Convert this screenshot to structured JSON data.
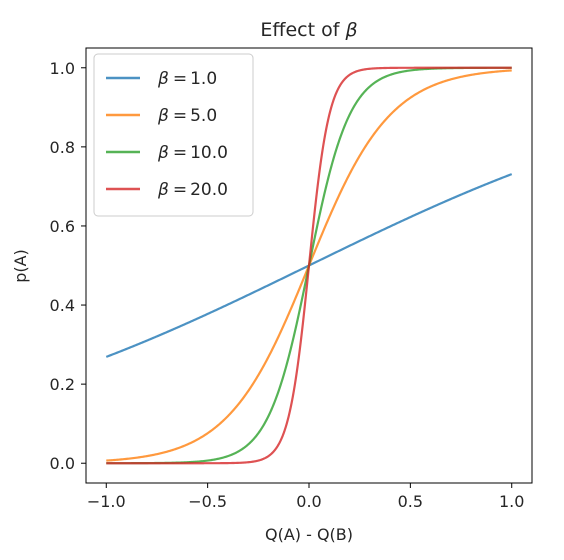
{
  "chart_data": {
    "type": "line",
    "title_prefix": "Effect of ",
    "title_symbol": "β",
    "xlabel": "Q(A) - Q(B)",
    "ylabel": "p(A)",
    "xlim": [
      -1.1,
      1.1
    ],
    "ylim": [
      -0.05,
      1.05
    ],
    "x_ticks": [
      -1.0,
      -0.5,
      0.0,
      0.5,
      1.0
    ],
    "x_tick_labels": [
      "−1.0",
      "−0.5",
      "0.0",
      "0.5",
      "1.0"
    ],
    "y_ticks": [
      0.0,
      0.2,
      0.4,
      0.6,
      0.8,
      1.0
    ],
    "y_tick_labels": [
      "0.0",
      "0.2",
      "0.4",
      "0.6",
      "0.8",
      "1.0"
    ],
    "grid": false,
    "legend_position": "top-left",
    "function": "logistic",
    "x": [
      -1.0,
      -0.9,
      -0.8,
      -0.7,
      -0.6,
      -0.5,
      -0.4,
      -0.3,
      -0.2,
      -0.1,
      0.0,
      0.1,
      0.2,
      0.3,
      0.4,
      0.5,
      0.6,
      0.7,
      0.8,
      0.9,
      1.0
    ],
    "series": [
      {
        "name": "1.0",
        "beta": 1.0,
        "color": "#1f77b4",
        "values": [
          0.269,
          0.289,
          0.31,
          0.332,
          0.354,
          0.378,
          0.401,
          0.426,
          0.45,
          0.475,
          0.5,
          0.525,
          0.55,
          0.574,
          0.599,
          0.622,
          0.646,
          0.668,
          0.69,
          0.711,
          0.731
        ]
      },
      {
        "name": "5.0",
        "beta": 5.0,
        "color": "#ff7f0e",
        "values": [
          0.007,
          0.011,
          0.018,
          0.029,
          0.047,
          0.076,
          0.119,
          0.182,
          0.269,
          0.378,
          0.5,
          0.622,
          0.731,
          0.818,
          0.881,
          0.924,
          0.953,
          0.971,
          0.982,
          0.989,
          0.993
        ]
      },
      {
        "name": "10.0",
        "beta": 10.0,
        "color": "#2ca02c",
        "values": [
          0.0,
          0.0,
          0.0,
          0.001,
          0.002,
          0.007,
          0.018,
          0.047,
          0.119,
          0.269,
          0.5,
          0.731,
          0.881,
          0.953,
          0.982,
          0.993,
          0.998,
          0.999,
          1.0,
          1.0,
          1.0
        ]
      },
      {
        "name": "20.0",
        "beta": 20.0,
        "color": "#d62728",
        "values": [
          0.0,
          0.0,
          0.0,
          0.0,
          0.0,
          0.0,
          0.0,
          0.002,
          0.018,
          0.119,
          0.5,
          0.881,
          0.982,
          0.998,
          1.0,
          1.0,
          1.0,
          1.0,
          1.0,
          1.0,
          1.0
        ]
      }
    ]
  }
}
